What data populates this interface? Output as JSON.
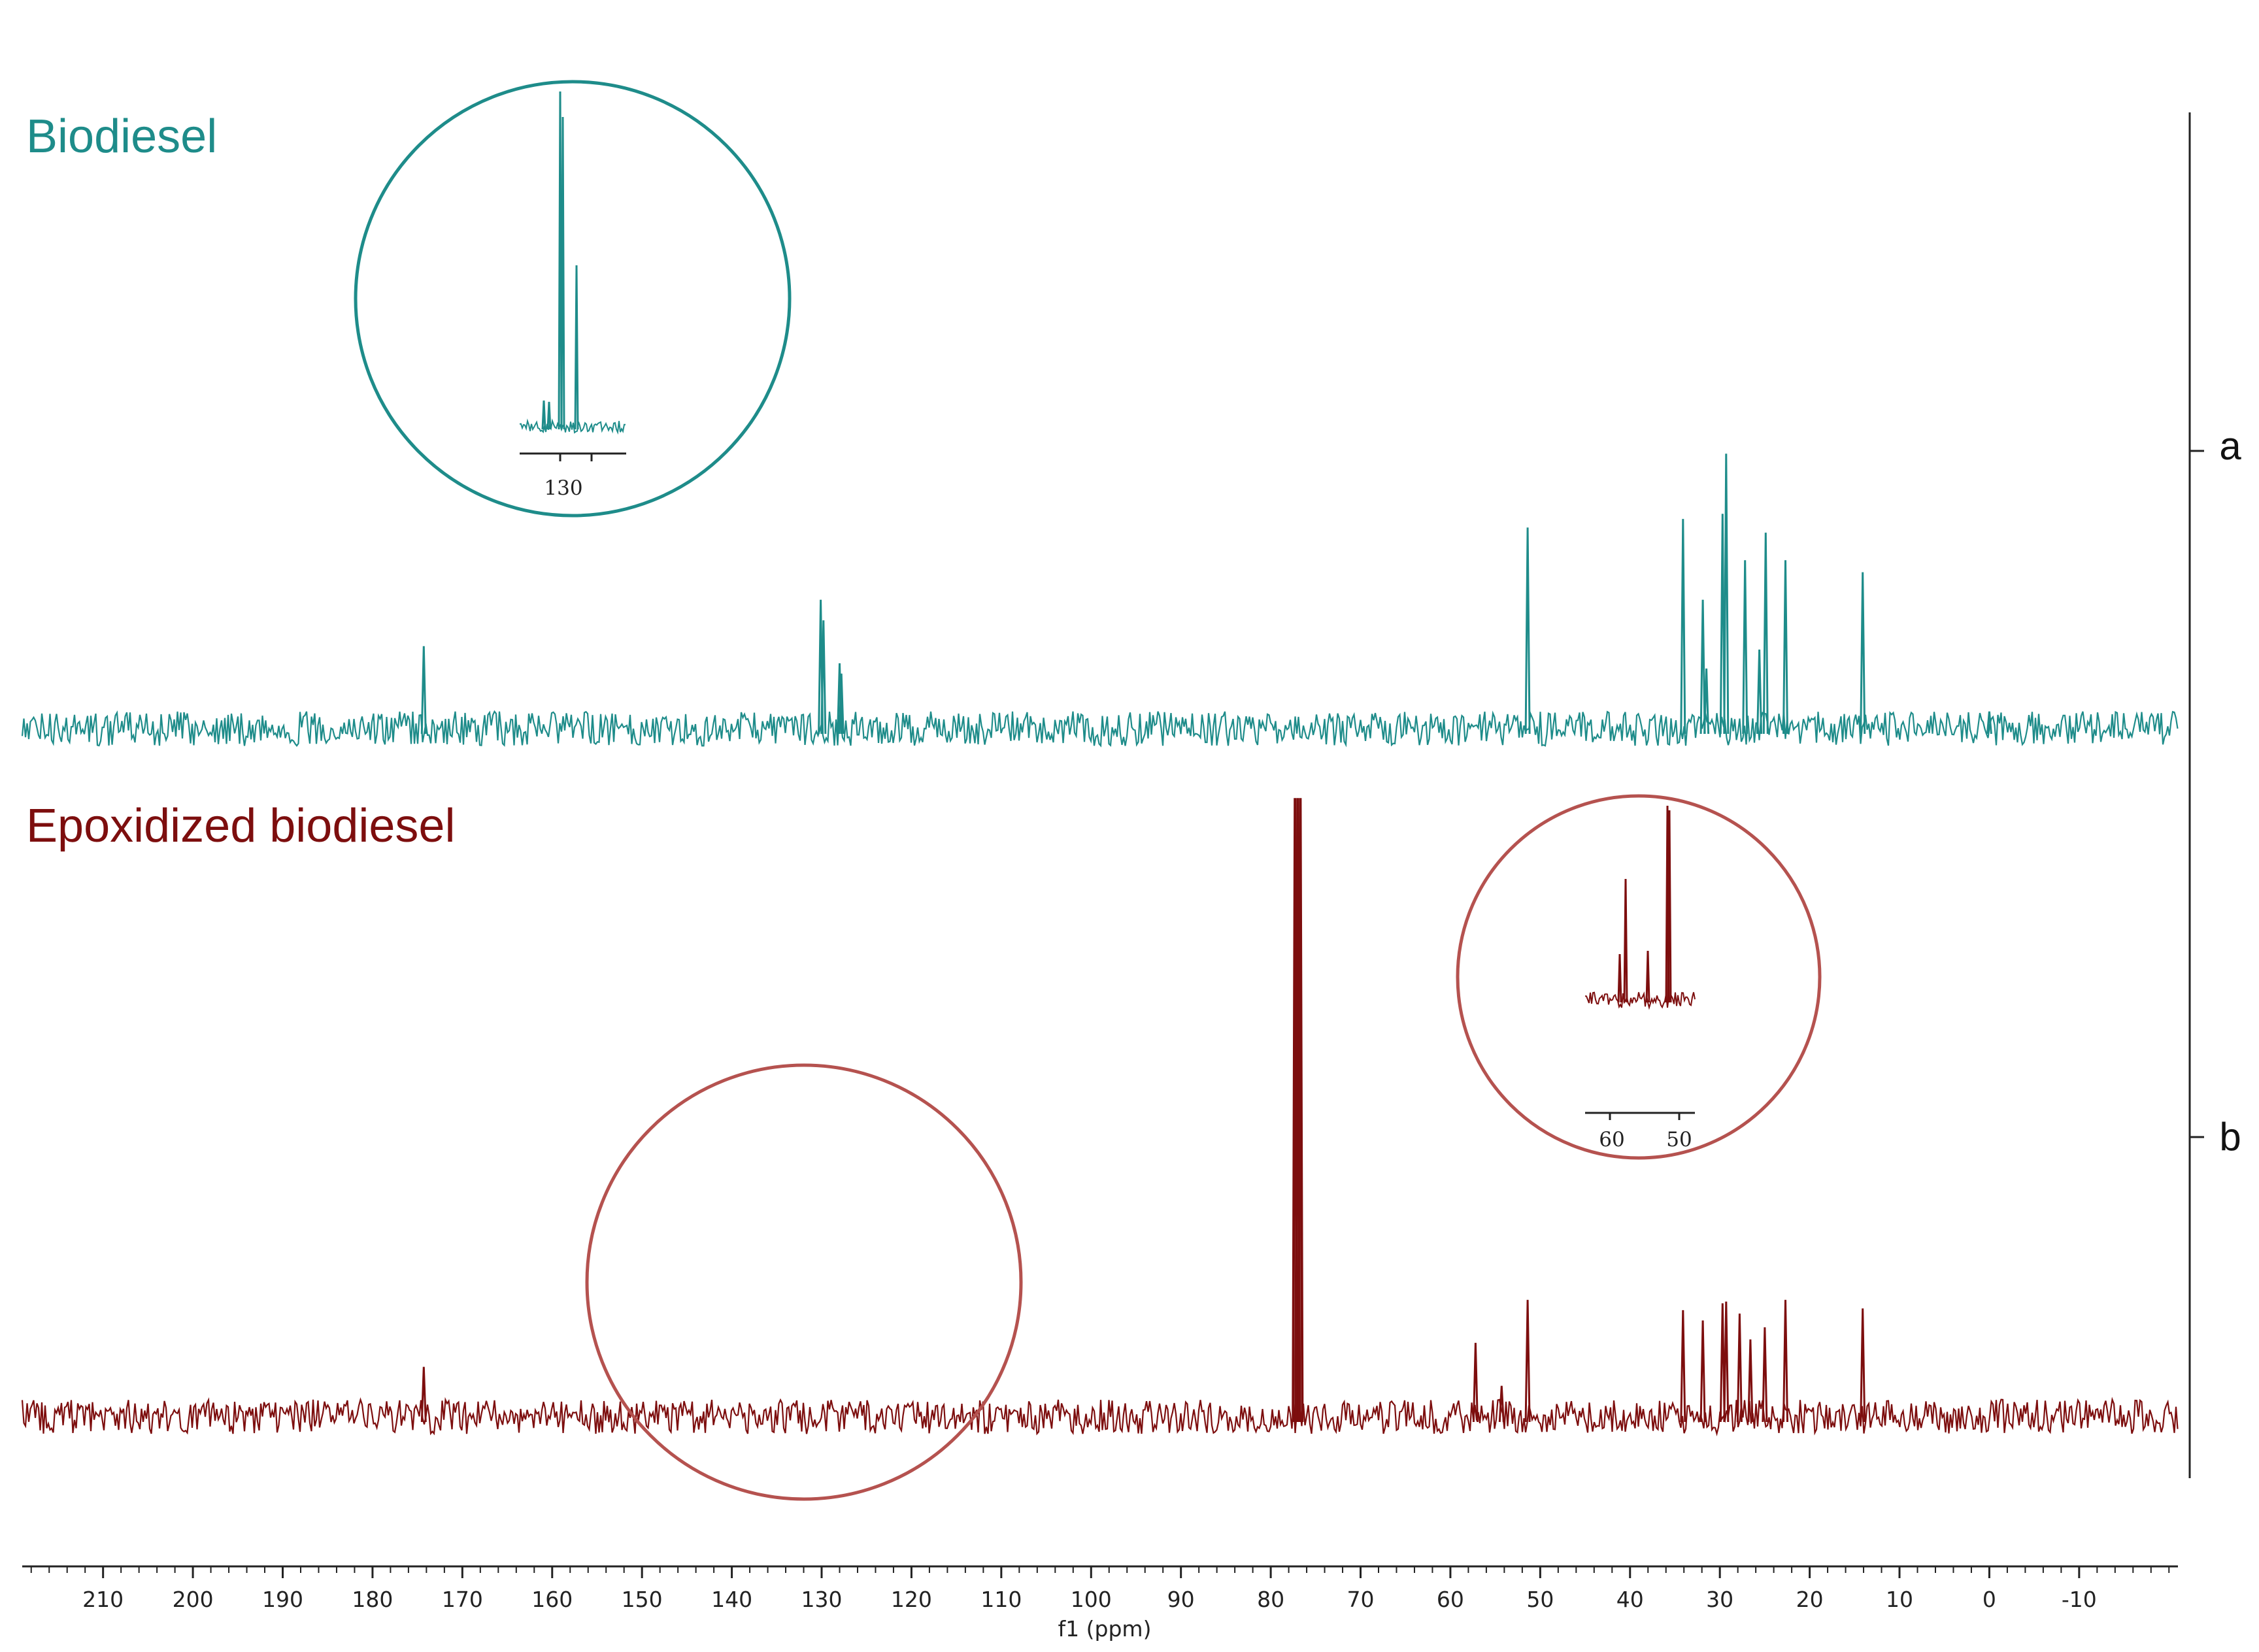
{
  "colors": {
    "biodiesel": "#1e8c8a",
    "epoxidized": "#7d0e0e",
    "epoxidized_circle": "#b5524f",
    "axis": "#222222",
    "solvent_peak": "#7d0e0e"
  },
  "chart_data": {
    "type": "line",
    "title": "",
    "xlabel": "f1 (ppm)",
    "ylabel": "",
    "x_reversed": true,
    "xlim": [
      219,
      -21
    ],
    "x_ticks": [
      210,
      200,
      190,
      180,
      170,
      160,
      150,
      140,
      130,
      120,
      110,
      100,
      90,
      80,
      70,
      60,
      50,
      40,
      30,
      20,
      10,
      0,
      -10
    ],
    "x_tick_labels": [
      "210",
      "200",
      "190",
      "180",
      "170",
      "160",
      "150",
      "140",
      "130",
      "120",
      "110",
      "100",
      "90",
      "80",
      "70",
      "60",
      "50",
      "40",
      "30",
      "20",
      "10",
      "0",
      "-10"
    ],
    "series": [
      {
        "name": "Biodiesel",
        "trace_label": "a",
        "noise_amplitude": 0.1,
        "peaks": [
          {
            "ppm": 174.3,
            "height": 0.48
          },
          {
            "ppm": 130.1,
            "height": 0.75
          },
          {
            "ppm": 129.8,
            "height": 0.63
          },
          {
            "ppm": 128.0,
            "height": 0.38
          },
          {
            "ppm": 127.8,
            "height": 0.32
          },
          {
            "ppm": 51.4,
            "height": 1.17
          },
          {
            "ppm": 34.1,
            "height": 1.22
          },
          {
            "ppm": 31.9,
            "height": 0.75
          },
          {
            "ppm": 31.5,
            "height": 0.35
          },
          {
            "ppm": 29.7,
            "height": 1.25
          },
          {
            "ppm": 29.3,
            "height": 1.6
          },
          {
            "ppm": 27.2,
            "height": 0.98
          },
          {
            "ppm": 25.6,
            "height": 0.46
          },
          {
            "ppm": 24.9,
            "height": 1.14
          },
          {
            "ppm": 22.7,
            "height": 0.98
          },
          {
            "ppm": 14.1,
            "height": 0.91
          },
          {
            "ppm": 0.0,
            "height": 0.1
          }
        ],
        "inset": {
          "type": "zoom",
          "tick_label": "130"
        }
      },
      {
        "name": "Epoxidized biodiesel",
        "trace_label": "b",
        "noise_amplitude": 0.1,
        "peaks": [
          {
            "ppm": 174.3,
            "height": 0.29
          },
          {
            "ppm": 77.3,
            "height": 3.6
          },
          {
            "ppm": 77.0,
            "height": 3.6
          },
          {
            "ppm": 76.7,
            "height": 3.6
          },
          {
            "ppm": 57.2,
            "height": 0.43
          },
          {
            "ppm": 54.3,
            "height": 0.18
          },
          {
            "ppm": 51.4,
            "height": 0.68
          },
          {
            "ppm": 34.1,
            "height": 0.62
          },
          {
            "ppm": 31.9,
            "height": 0.56
          },
          {
            "ppm": 29.7,
            "height": 0.66
          },
          {
            "ppm": 29.3,
            "height": 0.67
          },
          {
            "ppm": 27.8,
            "height": 0.6
          },
          {
            "ppm": 26.6,
            "height": 0.45
          },
          {
            "ppm": 25.0,
            "height": 0.52
          },
          {
            "ppm": 22.7,
            "height": 0.68
          },
          {
            "ppm": 14.1,
            "height": 0.63
          }
        ],
        "inset": {
          "type": "zoom",
          "tick_labels": [
            "60",
            "50"
          ]
        },
        "highlight": {
          "ppm_center": 133,
          "note": "olefinic region (~130 ppm) with no remaining peaks"
        }
      }
    ]
  }
}
